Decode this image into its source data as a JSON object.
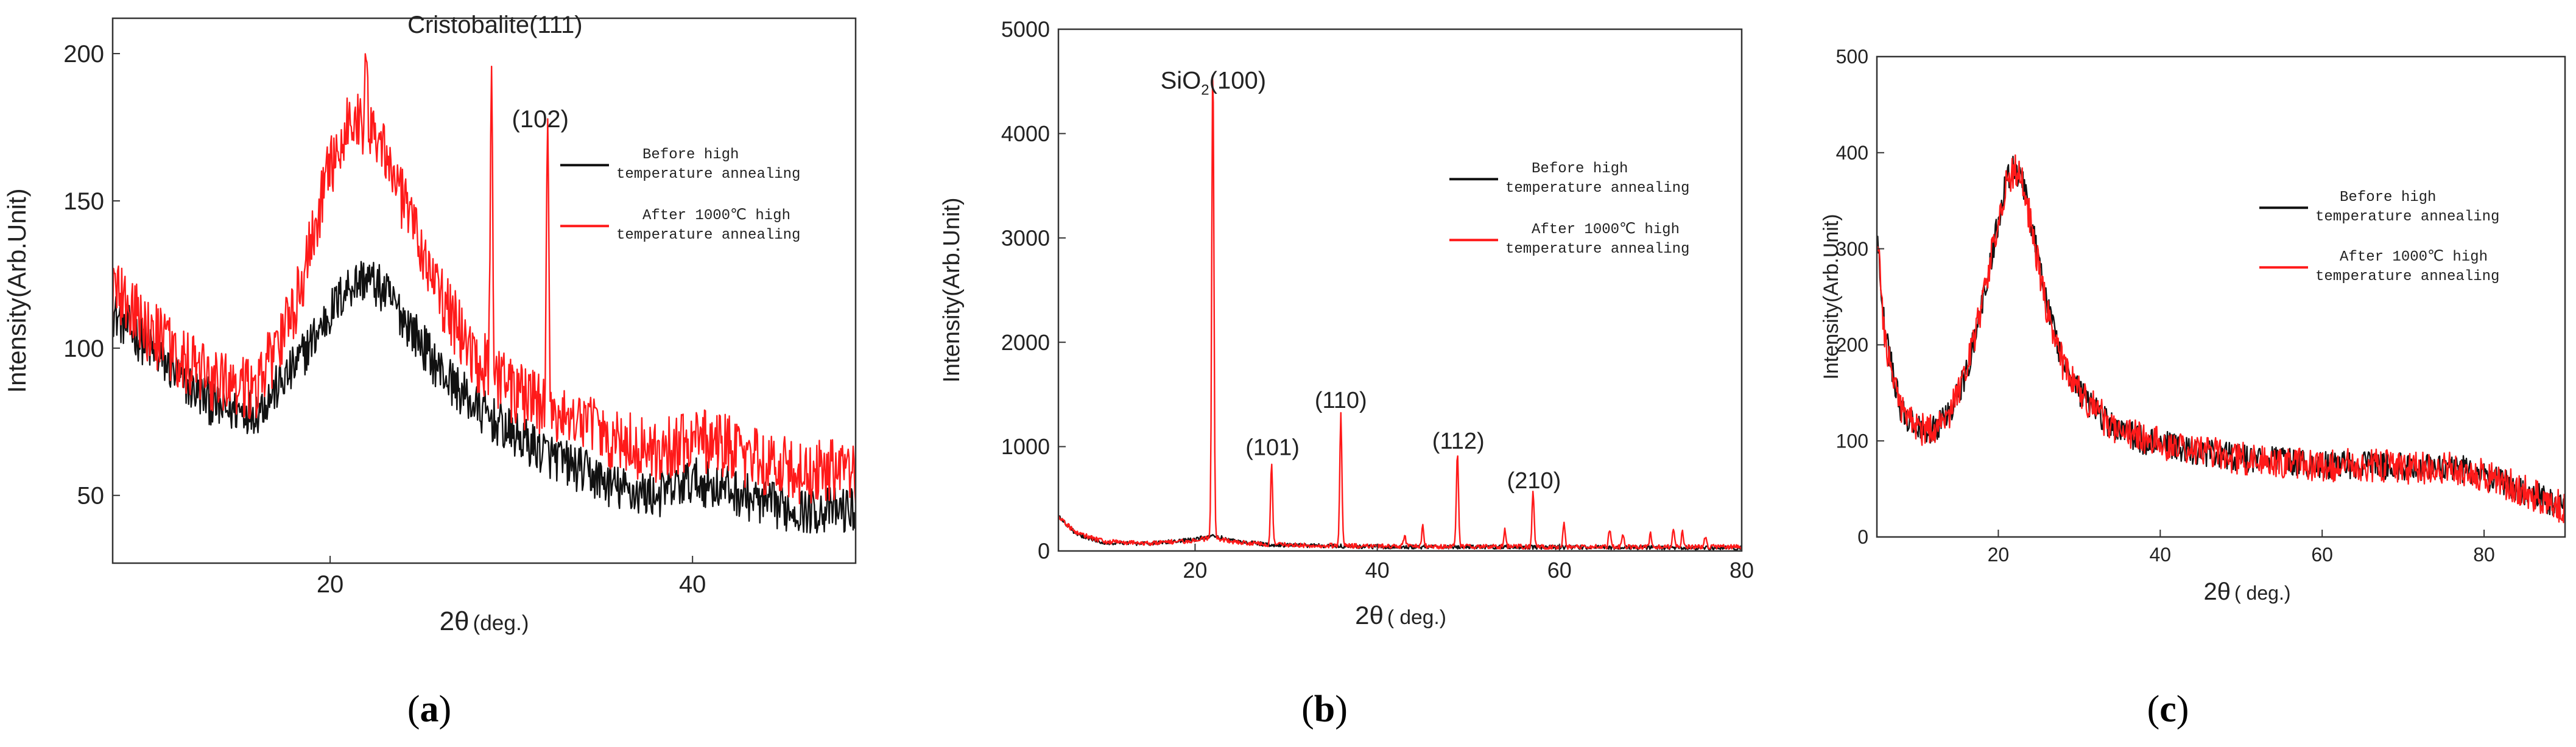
{
  "colors": {
    "before": "#111111",
    "after": "#ff1a1a",
    "axis": "#333333",
    "text": "#222222"
  },
  "chart_data": [
    {
      "type": "line",
      "panel_label": "a",
      "xlabel_main": "2θ",
      "xlabel_unit": "(deg.)",
      "ylabel": "Intensity(Arb.Unit)",
      "xlim": [
        8,
        49
      ],
      "ylim": [
        27,
        212
      ],
      "xticks": [
        20,
        40
      ],
      "yticks": [
        50,
        100,
        150,
        200
      ],
      "legend": [
        "Before high",
        "temperature annealing",
        "After 1000℃ high",
        "temperature annealing"
      ],
      "annotations": [
        {
          "text": "Cristobalite(111)",
          "x": 29.1,
          "y": 207
        },
        {
          "text": "(102)",
          "x": 31.6,
          "y": 175
        }
      ],
      "series": [
        {
          "name": "Before high temperature annealing",
          "points": [
            [
              8,
              112
            ],
            [
              10,
              100
            ],
            [
              12,
              88
            ],
            [
              14,
              79
            ],
            [
              16,
              79
            ],
            [
              18,
              93
            ],
            [
              20,
              112
            ],
            [
              21,
              121
            ],
            [
              22,
              124
            ],
            [
              23,
              119
            ],
            [
              24,
              111
            ],
            [
              26,
              93
            ],
            [
              28,
              80
            ],
            [
              30,
              71
            ],
            [
              32,
              64
            ],
            [
              34,
              58
            ],
            [
              36,
              52
            ],
            [
              38,
              50
            ],
            [
              40,
              55
            ],
            [
              42,
              52
            ],
            [
              44,
              47
            ],
            [
              46,
              45
            ],
            [
              49,
              45
            ]
          ],
          "noise": 5,
          "peaks": []
        },
        {
          "name": "After 1000℃ high temperature annealing",
          "points": [
            [
              8,
              120
            ],
            [
              10,
              106
            ],
            [
              12,
              95
            ],
            [
              14,
              87
            ],
            [
              16,
              87
            ],
            [
              18,
              112
            ],
            [
              20,
              162
            ],
            [
              21,
              176
            ],
            [
              22,
              177
            ],
            [
              23,
              168
            ],
            [
              24,
              150
            ],
            [
              26,
              118
            ],
            [
              28,
              97
            ],
            [
              30,
              85
            ],
            [
              32,
              79
            ],
            [
              34,
              74
            ],
            [
              36,
              68
            ],
            [
              38,
              64
            ],
            [
              40,
              69
            ],
            [
              42,
              66
            ],
            [
              44,
              61
            ],
            [
              46,
              58
            ],
            [
              49,
              58
            ]
          ],
          "noise": 7,
          "peaks": [
            {
              "x": 22.0,
              "top": 200
            },
            {
              "x": 28.9,
              "top": 198
            },
            {
              "x": 32.0,
              "top": 172
            }
          ]
        }
      ]
    },
    {
      "type": "line",
      "panel_label": "b",
      "xlabel_main": "2θ",
      "xlabel_unit": "( deg.)",
      "ylabel": "Intensity(Arb.Unit)",
      "xlim": [
        5,
        80
      ],
      "ylim": [
        0,
        5000
      ],
      "xticks": [
        20,
        40,
        60,
        80
      ],
      "yticks": [
        0,
        1000,
        2000,
        3000,
        4000,
        5000
      ],
      "legend": [
        "Before high",
        "temperature annealing",
        "After 1000℃ high",
        "temperature annealing"
      ],
      "annotations": [
        {
          "text": "SiO",
          "sub": "2",
          "suffix": "(100)",
          "x": 22.0,
          "y": 4430
        },
        {
          "text": "(101)",
          "x": 28.5,
          "y": 920
        },
        {
          "text": "(110)",
          "x": 36.0,
          "y": 1370
        },
        {
          "text": "(112)",
          "x": 48.9,
          "y": 980
        },
        {
          "text": "(210)",
          "x": 57.2,
          "y": 600
        }
      ],
      "series": [
        {
          "name": "Before high temperature annealing",
          "points": [
            [
              5,
              330
            ],
            [
              7,
              160
            ],
            [
              10,
              80
            ],
            [
              15,
              70
            ],
            [
              20,
              110
            ],
            [
              22,
              150
            ],
            [
              24,
              100
            ],
            [
              28,
              60
            ],
            [
              40,
              40
            ],
            [
              60,
              35
            ],
            [
              80,
              30
            ]
          ],
          "noise": 12,
          "peaks": []
        },
        {
          "name": "After 1000℃ high temperature annealing",
          "points": [
            [
              5,
              330
            ],
            [
              7,
              170
            ],
            [
              10,
              90
            ],
            [
              15,
              75
            ],
            [
              20,
              100
            ],
            [
              22,
              130
            ],
            [
              24,
              90
            ],
            [
              28,
              60
            ],
            [
              40,
              45
            ],
            [
              60,
              40
            ],
            [
              80,
              40
            ]
          ],
          "noise": 14,
          "peaks": [
            {
              "x": 21.95,
              "top": 4720
            },
            {
              "x": 28.4,
              "top": 830
            },
            {
              "x": 36.0,
              "top": 1310
            },
            {
              "x": 48.8,
              "top": 930
            },
            {
              "x": 57.1,
              "top": 560
            },
            {
              "x": 45.0,
              "top": 250
            },
            {
              "x": 43.0,
              "top": 150
            },
            {
              "x": 54.0,
              "top": 200
            },
            {
              "x": 60.5,
              "top": 260
            },
            {
              "x": 65.5,
              "top": 200
            },
            {
              "x": 67.0,
              "top": 160
            },
            {
              "x": 70.0,
              "top": 170
            },
            {
              "x": 72.5,
              "top": 200
            },
            {
              "x": 73.5,
              "top": 180
            },
            {
              "x": 76.0,
              "top": 140
            }
          ]
        }
      ]
    },
    {
      "type": "line",
      "panel_label": "c",
      "xlabel_main": "2θ",
      "xlabel_unit": "( deg.)",
      "ylabel": "Intensity(Arb.Unit)",
      "xlim": [
        5,
        90
      ],
      "ylim": [
        0,
        500
      ],
      "xticks": [
        20,
        40,
        60,
        80
      ],
      "yticks": [
        0,
        100,
        200,
        300,
        400,
        500
      ],
      "legend": [
        "Before high",
        "temperature annealing",
        "After 1000℃ high",
        "temperature annealing"
      ],
      "annotations": [],
      "series": [
        {
          "name": "Before high temperature annealing",
          "points": [
            [
              5,
              320
            ],
            [
              6,
              210
            ],
            [
              8,
              130
            ],
            [
              10,
              112
            ],
            [
              12,
              112
            ],
            [
              14,
              130
            ],
            [
              16,
              170
            ],
            [
              18,
              240
            ],
            [
              20,
              330
            ],
            [
              21,
              370
            ],
            [
              22,
              385
            ],
            [
              23,
              370
            ],
            [
              24,
              330
            ],
            [
              26,
              240
            ],
            [
              28,
              180
            ],
            [
              30,
              150
            ],
            [
              34,
              115
            ],
            [
              38,
              100
            ],
            [
              44,
              90
            ],
            [
              50,
              82
            ],
            [
              56,
              78
            ],
            [
              60,
              75
            ],
            [
              66,
              75
            ],
            [
              72,
              72
            ],
            [
              78,
              70
            ],
            [
              82,
              58
            ],
            [
              86,
              44
            ],
            [
              90,
              30
            ]
          ],
          "noise": 9,
          "peaks": []
        },
        {
          "name": "After 1000℃ high temperature annealing",
          "points": [
            [
              5,
              315
            ],
            [
              6,
              205
            ],
            [
              8,
              130
            ],
            [
              10,
              112
            ],
            [
              12,
              112
            ],
            [
              14,
              130
            ],
            [
              16,
              170
            ],
            [
              18,
              240
            ],
            [
              20,
              330
            ],
            [
              21,
              370
            ],
            [
              22,
              383
            ],
            [
              23,
              368
            ],
            [
              24,
              328
            ],
            [
              26,
              238
            ],
            [
              28,
              180
            ],
            [
              30,
              150
            ],
            [
              34,
              115
            ],
            [
              38,
              100
            ],
            [
              44,
              90
            ],
            [
              50,
              82
            ],
            [
              56,
              78
            ],
            [
              60,
              75
            ],
            [
              66,
              75
            ],
            [
              72,
              72
            ],
            [
              78,
              70
            ],
            [
              82,
              58
            ],
            [
              86,
              44
            ],
            [
              90,
              30
            ]
          ],
          "noise": 11,
          "peaks": []
        }
      ]
    }
  ]
}
